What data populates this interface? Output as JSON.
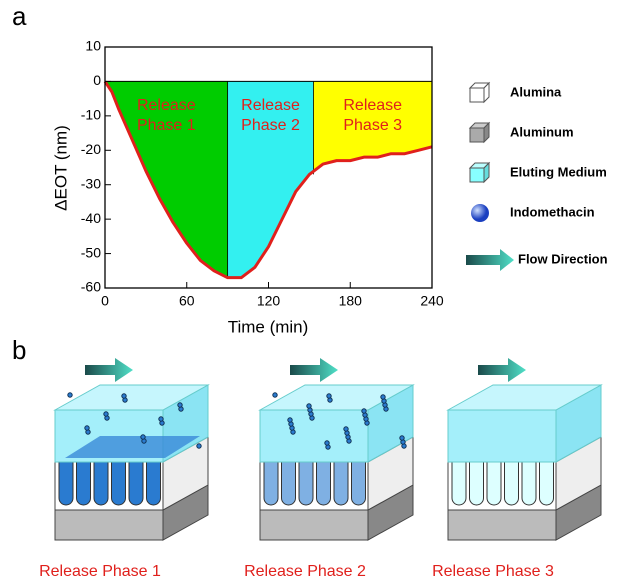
{
  "chart_data": {
    "type": "line",
    "panel_label": "a",
    "xlabel": "Time (min)",
    "ylabel": "ΔEOT (nm)",
    "x": [
      0,
      5,
      10,
      20,
      30,
      40,
      50,
      60,
      70,
      80,
      90,
      100,
      110,
      120,
      130,
      140,
      150,
      160,
      170,
      180,
      190,
      200,
      210,
      220,
      230,
      240
    ],
    "values": [
      0,
      -3,
      -8,
      -17,
      -26,
      -34,
      -41,
      -47,
      -52,
      -55,
      -57,
      -57,
      -54,
      -48,
      -40,
      -32,
      -27,
      -24,
      -23,
      -23,
      -22,
      -22,
      -21,
      -21,
      -20,
      -19
    ],
    "color": "#e0201c",
    "xlim": [
      0,
      240
    ],
    "ylim": [
      -60,
      10
    ],
    "xticks": [
      0,
      60,
      120,
      180,
      240
    ],
    "yticks": [
      10,
      0,
      -10,
      -20,
      -30,
      -40,
      -50,
      -60
    ],
    "regions": [
      {
        "label": "Release Phase 1",
        "start": 0,
        "end": 90,
        "color": "#00cc00"
      },
      {
        "label": "Release Phase 2",
        "start": 90,
        "end": 153,
        "color": "#33f0f0"
      },
      {
        "label": "Release Phase 3",
        "start": 153,
        "end": 240,
        "color": "#ffff00"
      }
    ]
  },
  "legend": [
    "Alumina",
    "Aluminum",
    "Eluting Medium",
    "Indomethacin",
    "Flow Direction"
  ],
  "schematic": {
    "panel_label": "b",
    "captions": [
      "Release Phase 1",
      "Release Phase 2",
      "Release Phase 3"
    ]
  }
}
